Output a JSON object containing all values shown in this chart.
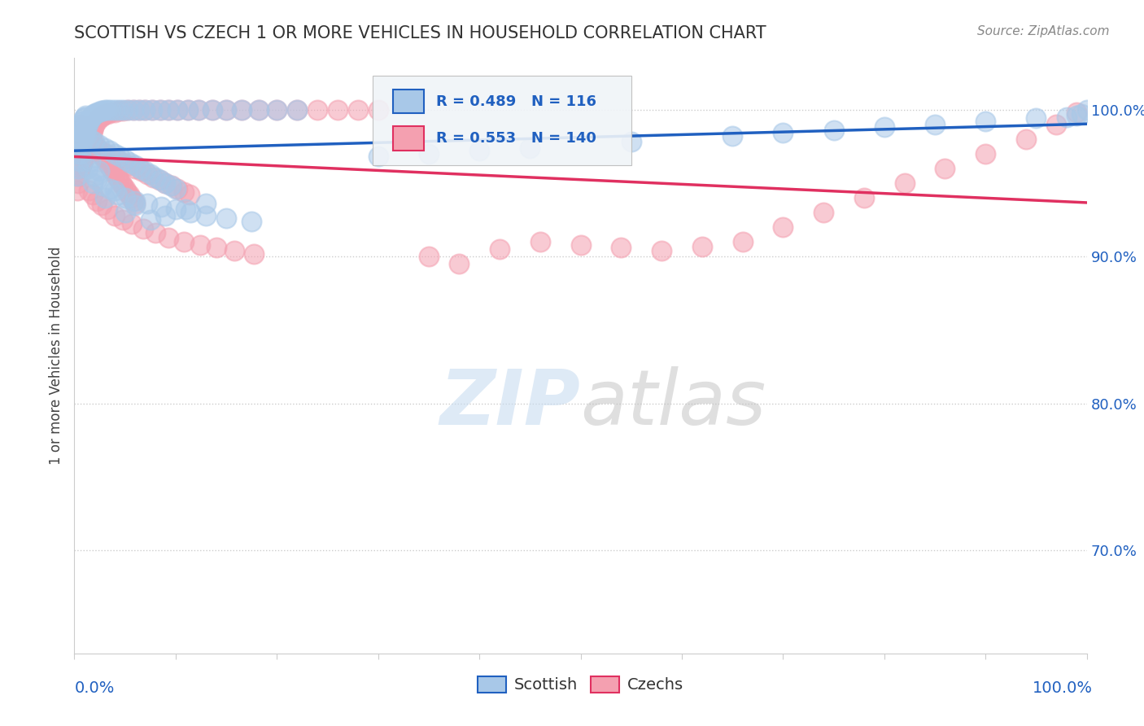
{
  "title": "SCOTTISH VS CZECH 1 OR MORE VEHICLES IN HOUSEHOLD CORRELATION CHART",
  "source_text": "Source: ZipAtlas.com",
  "ylabel": "1 or more Vehicles in Household",
  "xmin": 0.0,
  "xmax": 1.0,
  "ymin": 0.63,
  "ymax": 1.035,
  "yticks": [
    0.7,
    0.8,
    0.9,
    1.0
  ],
  "ytick_labels": [
    "70.0%",
    "80.0%",
    "90.0%",
    "100.0%"
  ],
  "scottish_color": "#A8C8E8",
  "czech_color": "#F4A0B0",
  "scottish_line_color": "#2060C0",
  "czech_line_color": "#E03060",
  "R_scottish": 0.489,
  "N_scottish": 116,
  "R_czech": 0.553,
  "N_czech": 140,
  "annotation_color": "#2060C0",
  "background_color": "#FFFFFF",
  "grid_color": "#CCCCCC",
  "watermark_color": "#DDEEFF",
  "scottish_x": [
    0.002,
    0.003,
    0.003,
    0.004,
    0.004,
    0.005,
    0.005,
    0.006,
    0.006,
    0.007,
    0.007,
    0.008,
    0.008,
    0.009,
    0.009,
    0.01,
    0.01,
    0.011,
    0.011,
    0.012,
    0.013,
    0.014,
    0.015,
    0.016,
    0.017,
    0.018,
    0.019,
    0.02,
    0.022,
    0.024,
    0.026,
    0.028,
    0.03,
    0.033,
    0.036,
    0.04,
    0.044,
    0.048,
    0.053,
    0.058,
    0.064,
    0.07,
    0.077,
    0.085,
    0.093,
    0.102,
    0.112,
    0.123,
    0.136,
    0.15,
    0.165,
    0.182,
    0.2,
    0.22,
    0.013,
    0.016,
    0.02,
    0.025,
    0.03,
    0.04,
    0.05,
    0.06,
    0.075,
    0.09,
    0.11,
    0.13,
    0.018,
    0.022,
    0.028,
    0.035,
    0.042,
    0.05,
    0.06,
    0.072,
    0.086,
    0.1,
    0.115,
    0.13,
    0.15,
    0.175,
    0.008,
    0.012,
    0.016,
    0.02,
    0.025,
    0.03,
    0.035,
    0.04,
    0.045,
    0.05,
    0.055,
    0.06,
    0.065,
    0.07,
    0.075,
    0.08,
    0.085,
    0.09,
    0.095,
    0.1,
    0.3,
    0.35,
    0.4,
    0.45,
    0.55,
    0.65,
    0.7,
    0.75,
    0.8,
    0.85,
    0.9,
    0.95,
    0.98,
    0.99,
    0.995,
    1.0
  ],
  "scottish_y": [
    0.97,
    0.955,
    0.975,
    0.96,
    0.98,
    0.965,
    0.985,
    0.97,
    0.988,
    0.975,
    0.99,
    0.978,
    0.992,
    0.982,
    0.994,
    0.984,
    0.995,
    0.986,
    0.996,
    0.988,
    0.99,
    0.992,
    0.993,
    0.994,
    0.995,
    0.996,
    0.997,
    0.997,
    0.998,
    0.998,
    0.999,
    0.999,
    1.0,
    1.0,
    1.0,
    1.0,
    1.0,
    1.0,
    1.0,
    1.0,
    1.0,
    1.0,
    1.0,
    1.0,
    1.0,
    1.0,
    1.0,
    1.0,
    1.0,
    1.0,
    1.0,
    1.0,
    1.0,
    1.0,
    0.96,
    0.965,
    0.955,
    0.958,
    0.94,
    0.945,
    0.93,
    0.935,
    0.925,
    0.928,
    0.932,
    0.936,
    0.95,
    0.952,
    0.948,
    0.946,
    0.942,
    0.94,
    0.938,
    0.936,
    0.934,
    0.932,
    0.93,
    0.928,
    0.926,
    0.924,
    0.985,
    0.982,
    0.98,
    0.978,
    0.976,
    0.974,
    0.972,
    0.97,
    0.968,
    0.966,
    0.964,
    0.962,
    0.96,
    0.958,
    0.956,
    0.954,
    0.952,
    0.95,
    0.948,
    0.946,
    0.968,
    0.97,
    0.972,
    0.974,
    0.978,
    0.982,
    0.984,
    0.986,
    0.988,
    0.99,
    0.992,
    0.994,
    0.995,
    0.996,
    0.997,
    1.0
  ],
  "czech_x": [
    0.002,
    0.003,
    0.003,
    0.004,
    0.004,
    0.005,
    0.005,
    0.006,
    0.006,
    0.007,
    0.007,
    0.008,
    0.008,
    0.009,
    0.009,
    0.01,
    0.01,
    0.011,
    0.011,
    0.012,
    0.013,
    0.014,
    0.015,
    0.016,
    0.017,
    0.018,
    0.019,
    0.02,
    0.022,
    0.024,
    0.026,
    0.028,
    0.03,
    0.033,
    0.036,
    0.04,
    0.044,
    0.048,
    0.053,
    0.058,
    0.064,
    0.07,
    0.077,
    0.085,
    0.093,
    0.102,
    0.112,
    0.123,
    0.136,
    0.15,
    0.165,
    0.182,
    0.2,
    0.22,
    0.24,
    0.26,
    0.28,
    0.3,
    0.014,
    0.018,
    0.022,
    0.027,
    0.033,
    0.04,
    0.048,
    0.057,
    0.068,
    0.08,
    0.093,
    0.108,
    0.124,
    0.14,
    0.158,
    0.177,
    0.01,
    0.013,
    0.017,
    0.021,
    0.026,
    0.031,
    0.036,
    0.042,
    0.048,
    0.054,
    0.06,
    0.066,
    0.072,
    0.078,
    0.084,
    0.09,
    0.096,
    0.102,
    0.108,
    0.114,
    0.006,
    0.008,
    0.01,
    0.012,
    0.014,
    0.016,
    0.018,
    0.02,
    0.022,
    0.024,
    0.026,
    0.028,
    0.03,
    0.032,
    0.034,
    0.036,
    0.038,
    0.04,
    0.042,
    0.044,
    0.046,
    0.048,
    0.05,
    0.052,
    0.054,
    0.056,
    0.058,
    0.06,
    0.35,
    0.38,
    0.42,
    0.46,
    0.5,
    0.54,
    0.58,
    0.62,
    0.66,
    0.7,
    0.74,
    0.78,
    0.82,
    0.86,
    0.9,
    0.94,
    0.97,
    0.99
  ],
  "czech_y": [
    0.955,
    0.945,
    0.965,
    0.95,
    0.97,
    0.955,
    0.975,
    0.96,
    0.978,
    0.962,
    0.98,
    0.964,
    0.982,
    0.966,
    0.984,
    0.968,
    0.986,
    0.97,
    0.988,
    0.972,
    0.975,
    0.978,
    0.98,
    0.982,
    0.984,
    0.986,
    0.988,
    0.99,
    0.992,
    0.994,
    0.995,
    0.996,
    0.997,
    0.997,
    0.998,
    0.998,
    0.999,
    0.999,
    1.0,
    1.0,
    1.0,
    1.0,
    1.0,
    1.0,
    1.0,
    1.0,
    1.0,
    1.0,
    1.0,
    1.0,
    1.0,
    1.0,
    1.0,
    1.0,
    1.0,
    1.0,
    1.0,
    1.0,
    0.945,
    0.942,
    0.938,
    0.935,
    0.932,
    0.928,
    0.925,
    0.922,
    0.919,
    0.916,
    0.913,
    0.91,
    0.908,
    0.906,
    0.904,
    0.902,
    0.98,
    0.978,
    0.976,
    0.974,
    0.972,
    0.97,
    0.968,
    0.966,
    0.964,
    0.962,
    0.96,
    0.958,
    0.956,
    0.954,
    0.952,
    0.95,
    0.948,
    0.946,
    0.944,
    0.942,
    0.99,
    0.988,
    0.986,
    0.984,
    0.982,
    0.98,
    0.978,
    0.976,
    0.974,
    0.972,
    0.97,
    0.968,
    0.966,
    0.964,
    0.962,
    0.96,
    0.958,
    0.956,
    0.954,
    0.952,
    0.95,
    0.948,
    0.946,
    0.944,
    0.942,
    0.94,
    0.938,
    0.936,
    0.9,
    0.895,
    0.905,
    0.91,
    0.908,
    0.906,
    0.904,
    0.907,
    0.91,
    0.92,
    0.93,
    0.94,
    0.95,
    0.96,
    0.97,
    0.98,
    0.99,
    0.998
  ]
}
